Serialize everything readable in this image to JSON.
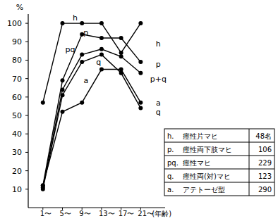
{
  "chart_data": {
    "type": "line",
    "y_label": "%",
    "x_label": "(年齢)",
    "x": [
      1,
      5,
      9,
      13,
      17,
      21
    ],
    "xlim": [
      -2,
      26
    ],
    "xticks": [
      {
        "value": 1,
        "label": "1〜"
      },
      {
        "value": 5,
        "label": "5〜"
      },
      {
        "value": 9,
        "label": "9〜"
      },
      {
        "value": 13,
        "label": "13〜"
      },
      {
        "value": 17,
        "label": "17〜"
      },
      {
        "value": 21,
        "label": "21〜"
      }
    ],
    "ylim": [
      0,
      105
    ],
    "yticks": [
      10,
      20,
      30,
      40,
      50,
      60,
      70,
      80,
      90,
      100
    ],
    "grid": false,
    "series": [
      {
        "name": "h",
        "color": "#000000",
        "marker": "circle",
        "values": [
          57,
          100,
          100,
          100,
          84,
          100
        ]
      },
      {
        "name": "p",
        "color": "#000000",
        "marker": "circle",
        "values": [
          12,
          69,
          94,
          92,
          92,
          79
        ]
      },
      {
        "name": "pq",
        "color": "#000000",
        "marker": "circle",
        "values": [
          11,
          64,
          83,
          86,
          82,
          73
        ]
      },
      {
        "name": "q",
        "color": "#000000",
        "marker": "circle",
        "values": [
          10,
          61,
          79,
          83,
          73,
          54
        ]
      },
      {
        "name": "a",
        "color": "#000000",
        "marker": "circle",
        "values": [
          12,
          52,
          57,
          75,
          75,
          57
        ]
      }
    ],
    "annotations": [
      {
        "series": 0,
        "x": 7.6,
        "y": 103
      },
      {
        "series": 1,
        "x": 9.8,
        "y": 95
      },
      {
        "series": 2,
        "x": 6.6,
        "y": 86
      },
      {
        "series": 3,
        "x": 12.4,
        "y": 79
      },
      {
        "series": 4,
        "x": 9.8,
        "y": 69
      },
      {
        "text": "h",
        "x": 24.6,
        "y": 89
      },
      {
        "text": "p",
        "x": 24.6,
        "y": 78
      },
      {
        "text": "p+q",
        "x": 24.6,
        "y": 70
      },
      {
        "text": "a",
        "x": 24.6,
        "y": 57
      },
      {
        "text": "q",
        "x": 24.6,
        "y": 52
      }
    ],
    "legend_table": [
      {
        "key": "h.",
        "label": "痙性片マヒ",
        "count": "48名"
      },
      {
        "key": "p.",
        "label": "痙性両下肢マヒ",
        "count": "106"
      },
      {
        "key": "pq.",
        "label": "痙性マヒ",
        "count": "229"
      },
      {
        "key": "q.",
        "label": "痙性両(対)マヒ",
        "count": "123"
      },
      {
        "key": "a.",
        "label": "アテトーゼ型",
        "count": "290"
      }
    ]
  }
}
